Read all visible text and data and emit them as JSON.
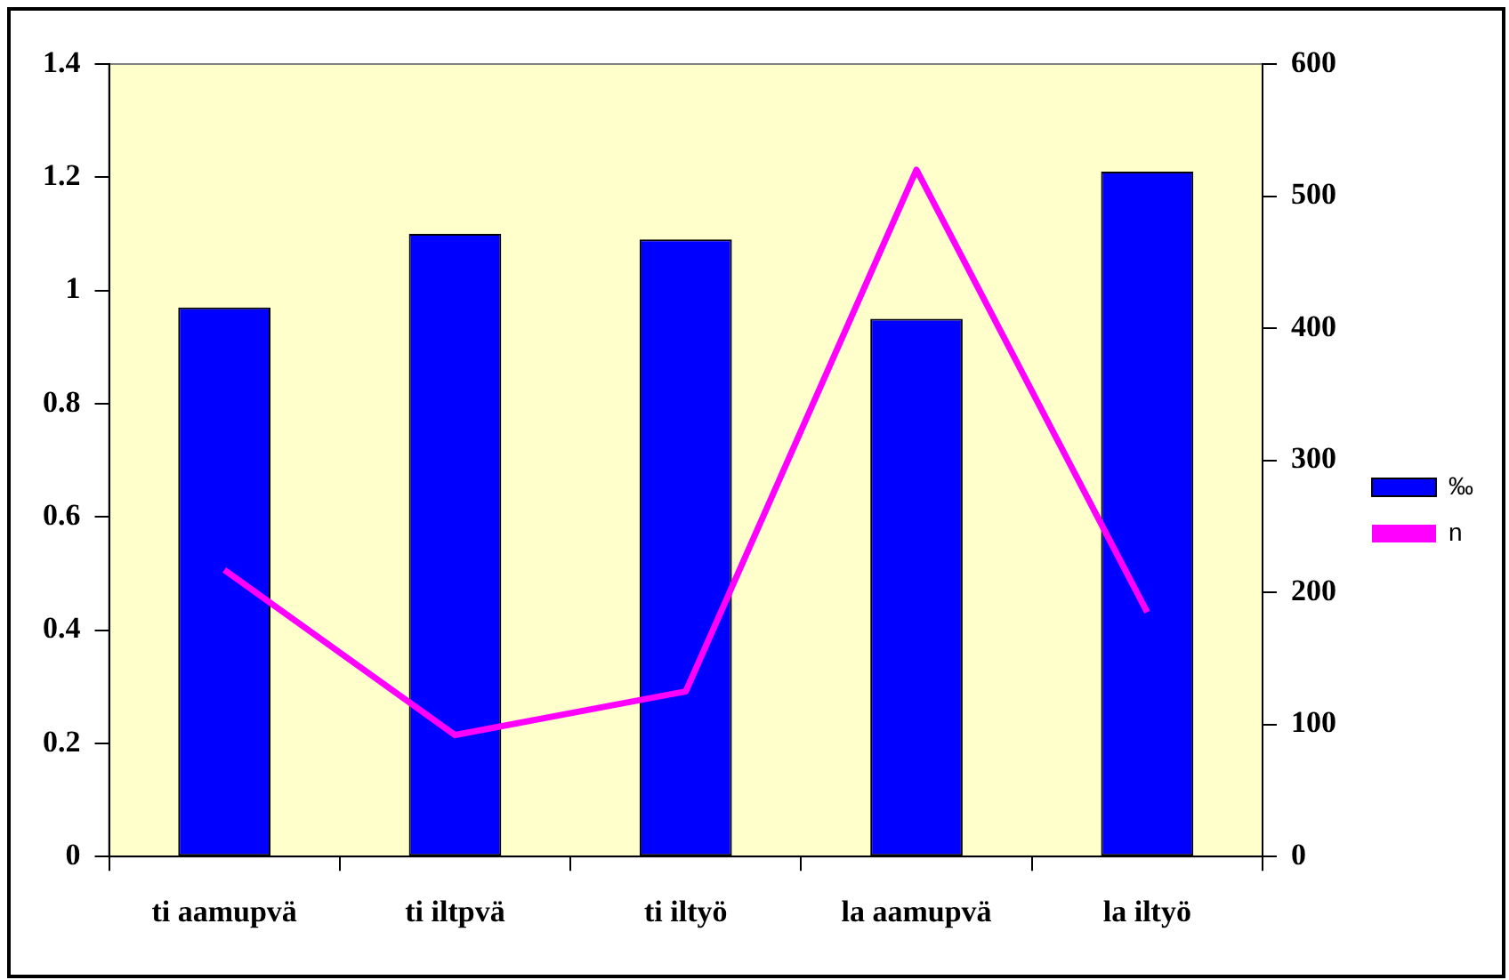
{
  "chart_data": {
    "type": "bar",
    "categories": [
      "ti aamupvä",
      "ti iltpvä",
      "ti iltyö",
      "la aamupvä",
      "la iltyö"
    ],
    "series": [
      {
        "name": "‰",
        "color": "#0000ff",
        "values": [
          0.97,
          1.1,
          1.09,
          0.95,
          1.21
        ]
      },
      {
        "name": "n",
        "type": "line",
        "axis": "y2",
        "color": "#ff00ff",
        "values": [
          217,
          92,
          125,
          520,
          185
        ]
      }
    ],
    "ylim": [
      0,
      1.4
    ],
    "yticks": [
      0,
      0.2,
      0.4,
      0.6,
      0.8,
      1,
      1.2,
      1.4
    ],
    "y2lim": [
      0,
      600
    ],
    "y2ticks": [
      0,
      100,
      200,
      300,
      400,
      500,
      600
    ],
    "grid": false,
    "legend": "right",
    "marker": "none"
  }
}
